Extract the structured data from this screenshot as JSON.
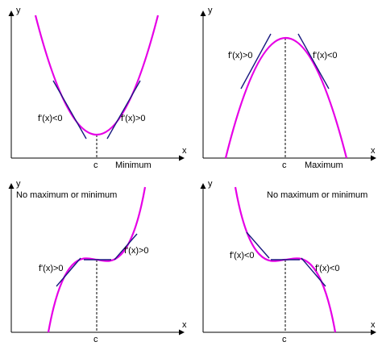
{
  "colors": {
    "curve": "#e600e6",
    "tangent": "#1a1a80",
    "axis": "#000000"
  },
  "panels": [
    {
      "y_label": "y",
      "x_label": "x",
      "c_label": "c",
      "caption": "Minimum",
      "left_derivative": "f'(x)<0",
      "right_derivative": "f'(x)>0"
    },
    {
      "y_label": "y",
      "x_label": "x",
      "c_label": "c",
      "caption": "Maximum",
      "left_derivative": "f'(x)>0",
      "right_derivative": "f'(x)<0"
    },
    {
      "y_label": "y",
      "x_label": "x",
      "c_label": "c",
      "caption": "No maximum or minimum",
      "left_derivative": "f'(x)>0",
      "right_derivative": "f'(x)>0"
    },
    {
      "y_label": "y",
      "x_label": "x",
      "c_label": "c",
      "caption": "No maximum or minimum",
      "left_derivative": "f'(x)<0",
      "right_derivative": "f'(x)<0"
    }
  ]
}
